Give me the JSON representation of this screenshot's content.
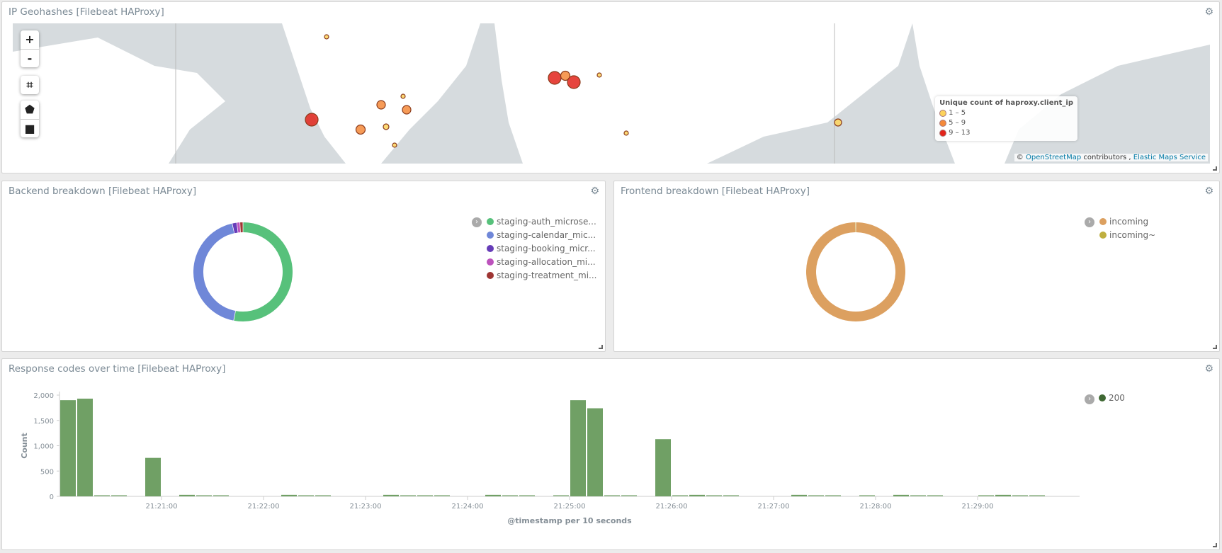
{
  "map_panel": {
    "title": "IP Geohashes [Filebeat HAProxy]",
    "controls": {
      "zoom_in": "+",
      "zoom_out": "-"
    },
    "legend": {
      "title": "Unique count of haproxy.client_ip",
      "items": [
        {
          "label": "1 – 5",
          "color": "#fdd35c"
        },
        {
          "label": "5 – 9",
          "color": "#f4893a"
        },
        {
          "label": "9 – 13",
          "color": "#e2241b"
        }
      ]
    },
    "attribution": {
      "prefix": "©",
      "osm": "OpenStreetMap",
      "contributors": "contributors ,",
      "ems": "Elastic Maps Service"
    }
  },
  "backend_panel": {
    "title": "Backend breakdown [Filebeat HAProxy]",
    "legend": [
      {
        "label": "staging-auth_microse...",
        "color": "#57c17b",
        "share": 53
      },
      {
        "label": "staging-calendar_mic...",
        "color": "#6f87d8",
        "share": 43.5
      },
      {
        "label": "staging-booking_micr...",
        "color": "#663db8",
        "share": 1.5
      },
      {
        "label": "staging-allocation_mi...",
        "color": "#bc52bc",
        "share": 1
      },
      {
        "label": "staging-treatment_mi...",
        "color": "#9e3533",
        "share": 1
      }
    ]
  },
  "frontend_panel": {
    "title": "Frontend breakdown [Filebeat HAProxy]",
    "legend": [
      {
        "label": "incoming",
        "color": "#dca060",
        "share": 99.9
      },
      {
        "label": "incoming~",
        "color": "#bfaf40",
        "share": 0.1
      }
    ]
  },
  "chart_data": {
    "type": "bar",
    "title": "Response codes over time [Filebeat HAProxy]",
    "xlabel": "@timestamp per 10 seconds",
    "ylabel": "Count",
    "ylim": [
      0,
      2000
    ],
    "y_ticks": [
      "0",
      "500",
      "1,000",
      "1,500",
      "2,000"
    ],
    "x_ticks": [
      "21:21:00",
      "21:22:00",
      "21:23:00",
      "21:24:00",
      "21:25:00",
      "21:26:00",
      "21:27:00",
      "21:28:00",
      "21:29:00"
    ],
    "x_range": [
      "21:20:00",
      "21:30:00"
    ],
    "bucket": "10 seconds",
    "series": [
      {
        "name": "200",
        "color": "#70a065",
        "legend_color": "#3f6833",
        "values": [
          1900,
          1930,
          20,
          10,
          0,
          760,
          0,
          30,
          20,
          20,
          0,
          0,
          0,
          30,
          20,
          20,
          0,
          0,
          0,
          30,
          20,
          20,
          5,
          0,
          0,
          30,
          20,
          20,
          0,
          5,
          1900,
          1740,
          15,
          15,
          0,
          1130,
          15,
          30,
          20,
          5,
          0,
          0,
          0,
          30,
          20,
          15,
          0,
          5,
          0,
          30,
          20,
          20,
          0,
          0,
          15,
          30,
          20,
          20,
          0,
          0
        ]
      }
    ]
  }
}
